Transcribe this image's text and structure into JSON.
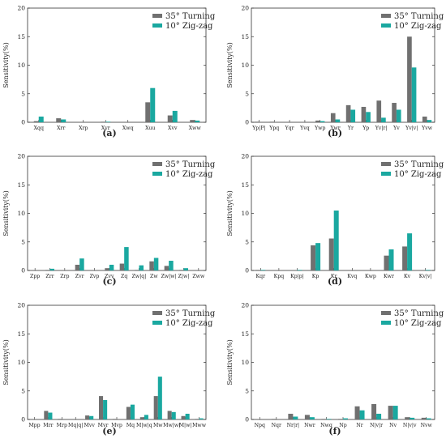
{
  "figure": {
    "colors": {
      "turning": "#707070",
      "zigzag": "#1aa8a0"
    },
    "legend": [
      "35° Turning",
      "10° Zig-zag"
    ],
    "ylabel": "Sensitivity(%)"
  },
  "chart_data": [
    {
      "type": "bar",
      "panel": "(a)",
      "ylabel": "Sensitivity(%)",
      "ylim": [
        0,
        20
      ],
      "yticks": [
        0,
        5,
        10,
        15,
        20
      ],
      "categories": [
        "Xqq",
        "Xrr",
        "Xrp",
        "Xvr",
        "Xwq",
        "Xuu",
        "Xvv",
        "Xww"
      ],
      "series": [
        {
          "name": "35° Turning",
          "values": [
            0.2,
            0.7,
            0.0,
            0.1,
            0.0,
            3.5,
            1.2,
            0.4
          ]
        },
        {
          "name": "10° Zig-zag",
          "values": [
            1.0,
            0.5,
            0.0,
            0.1,
            0.0,
            6.0,
            2.0,
            0.3
          ]
        }
      ]
    },
    {
      "type": "bar",
      "panel": "(b)",
      "ylabel": "Sensitivity(%)",
      "ylim": [
        0,
        20
      ],
      "yticks": [
        0,
        5,
        10,
        15,
        20
      ],
      "categories": [
        "Yp|P|",
        "Ypq",
        "Yqr",
        "Yvq",
        "Ywp",
        "Ywr",
        "Yr",
        "Yp",
        "Yv|r|",
        "Yv",
        "Yv|v|",
        "Yvw"
      ],
      "series": [
        {
          "name": "35° Turning",
          "values": [
            0.1,
            0.1,
            0.0,
            0.0,
            0.3,
            1.6,
            3.0,
            2.7,
            3.8,
            3.4,
            15.0,
            1.0
          ]
        },
        {
          "name": "10° Zig-zag",
          "values": [
            0.0,
            0.0,
            0.0,
            0.0,
            0.2,
            0.5,
            2.2,
            1.8,
            0.8,
            2.2,
            9.6,
            0.4
          ]
        }
      ]
    },
    {
      "type": "bar",
      "panel": "(c)",
      "ylabel": "Sensitivity(%)",
      "ylim": [
        0,
        20
      ],
      "yticks": [
        0,
        5,
        10,
        15,
        20
      ],
      "categories": [
        "Zpp",
        "Zrr",
        "Zrp",
        "Zvr",
        "Zvp",
        "Zvv",
        "Zq",
        "Zw|q|",
        "Zw",
        "Zw|w|",
        "Z|w|",
        "Zww"
      ],
      "series": [
        {
          "name": "35° Turning",
          "values": [
            0.0,
            0.1,
            0.0,
            1.0,
            0.0,
            0.4,
            1.2,
            0.1,
            1.6,
            0.8,
            0.1,
            0.0
          ]
        },
        {
          "name": "10° Zig-zag",
          "values": [
            0.0,
            0.3,
            0.0,
            2.1,
            0.0,
            1.0,
            4.1,
            0.9,
            2.2,
            1.7,
            0.4,
            0.0
          ]
        }
      ]
    },
    {
      "type": "bar",
      "panel": "(d)",
      "ylabel": "Sensitivity(%)",
      "ylim": [
        0,
        20
      ],
      "yticks": [
        0,
        5,
        10,
        15,
        20
      ],
      "categories": [
        "Kqr",
        "Kpq",
        "Kp|p|",
        "Kp",
        "Kr",
        "Kvq",
        "Kwp",
        "Kwr",
        "Kv",
        "Kv|v|"
      ],
      "series": [
        {
          "name": "35° Turning",
          "values": [
            0.1,
            0.0,
            0.0,
            4.4,
            5.6,
            0.0,
            0.0,
            2.6,
            4.2,
            0.0
          ]
        },
        {
          "name": "10° Zig-zag",
          "values": [
            0.1,
            0.0,
            0.1,
            4.8,
            10.5,
            0.0,
            0.0,
            3.7,
            6.5,
            0.1
          ]
        }
      ]
    },
    {
      "type": "bar",
      "panel": "(e)",
      "ylabel": "Sensitivity(%)",
      "ylim": [
        0,
        20
      ],
      "yticks": [
        0,
        5,
        10,
        15,
        20
      ],
      "categories": [
        "Mpp",
        "Mrr",
        "Mrp",
        "Mq|q|",
        "Mvv",
        "Mvr",
        "Mvp",
        "Mq",
        "M|w|q",
        "Mw",
        "Mw|w|",
        "M|w|",
        "Mww"
      ],
      "series": [
        {
          "name": "35° Turning",
          "values": [
            0.0,
            1.5,
            0.1,
            0.0,
            0.7,
            4.1,
            0.1,
            2.2,
            0.4,
            4.1,
            1.5,
            0.6,
            0.1
          ]
        },
        {
          "name": "10° Zig-zag",
          "values": [
            0.0,
            1.2,
            0.0,
            0.0,
            0.6,
            3.4,
            0.0,
            2.6,
            0.8,
            7.5,
            1.3,
            1.0,
            0.2
          ]
        }
      ]
    },
    {
      "type": "bar",
      "panel": "(f)",
      "ylabel": "Sensitivity(%)",
      "ylim": [
        0,
        20
      ],
      "yticks": [
        0,
        5,
        10,
        15,
        20
      ],
      "categories": [
        "Npq",
        "Nqr",
        "Nr|r|",
        "Nwr",
        "Nwq",
        "Np",
        "Nr",
        "N|v|r",
        "Nv",
        "N|v|v",
        "Nvw"
      ],
      "series": [
        {
          "name": "35° Turning",
          "values": [
            0.0,
            0.1,
            1.0,
            0.8,
            0.1,
            0.1,
            2.3,
            2.7,
            2.4,
            0.4,
            0.3
          ]
        },
        {
          "name": "10° Zig-zag",
          "values": [
            0.0,
            0.0,
            0.5,
            0.4,
            0.1,
            0.2,
            1.6,
            1.0,
            2.4,
            0.3,
            0.2
          ]
        }
      ]
    }
  ]
}
